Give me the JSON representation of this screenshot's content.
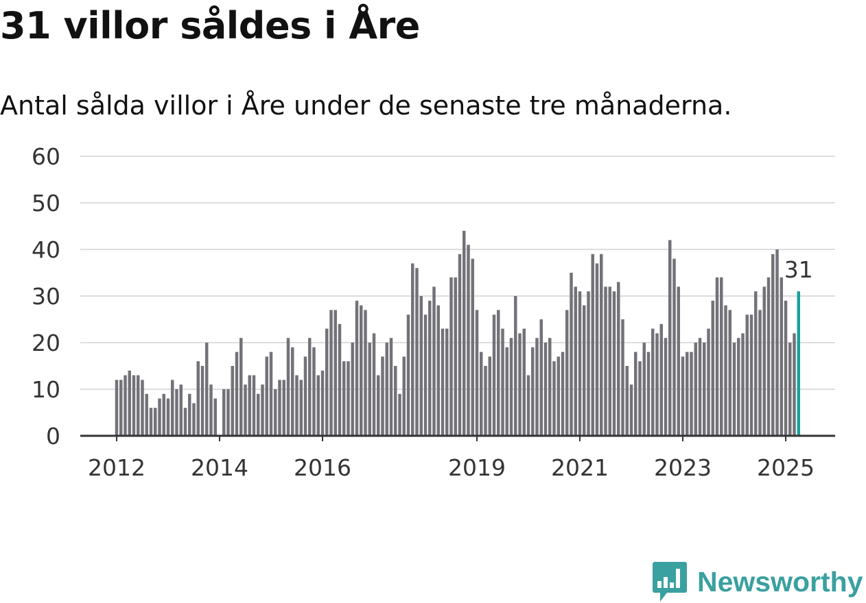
{
  "title": "31 villor såldes i Åre",
  "subtitle": "Antal sålda villor i Åre under de senaste tre månaderna.",
  "logo_text": "Newsworthy",
  "colors": {
    "bar": "#737278",
    "highlight": "#1aa09a",
    "grid": "#dddddd",
    "axis": "#333333",
    "brand": "#3aa0a0"
  },
  "chart_data": {
    "type": "bar",
    "title": "31 villor såldes i Åre",
    "xlabel": "",
    "ylabel": "",
    "ylim": [
      0,
      60
    ],
    "yticks": [
      0,
      10,
      20,
      30,
      40,
      50,
      60
    ],
    "xticks": [
      "2012",
      "2014",
      "2016",
      "2019",
      "2021",
      "2023",
      "2025"
    ],
    "start": "2012-01",
    "end": "2025-04",
    "grid": true,
    "highlight_label": "31",
    "values": [
      12,
      12,
      13,
      14,
      13,
      13,
      12,
      9,
      6,
      6,
      8,
      9,
      8,
      12,
      10,
      11,
      6,
      9,
      7,
      16,
      15,
      20,
      11,
      8,
      0,
      10,
      10,
      15,
      18,
      21,
      11,
      13,
      13,
      9,
      11,
      17,
      18,
      10,
      12,
      12,
      21,
      19,
      13,
      12,
      17,
      21,
      19,
      13,
      14,
      23,
      27,
      27,
      24,
      16,
      16,
      20,
      29,
      28,
      27,
      20,
      22,
      13,
      17,
      20,
      21,
      15,
      9,
      17,
      26,
      37,
      36,
      30,
      26,
      29,
      32,
      28,
      23,
      23,
      34,
      34,
      39,
      44,
      41,
      38,
      27,
      18,
      15,
      17,
      26,
      27,
      23,
      19,
      21,
      30,
      22,
      23,
      13,
      19,
      21,
      25,
      20,
      21,
      16,
      17,
      18,
      27,
      35,
      32,
      31,
      28,
      31,
      39,
      37,
      39,
      32,
      32,
      31,
      33,
      25,
      15,
      11,
      18,
      16,
      20,
      18,
      23,
      22,
      24,
      21,
      42,
      38,
      32,
      17,
      18,
      18,
      20,
      21,
      20,
      23,
      29,
      34,
      34,
      28,
      27,
      20,
      21,
      22,
      26,
      26,
      31,
      27,
      32,
      34,
      39,
      40,
      34,
      29,
      20,
      22,
      31
    ]
  }
}
